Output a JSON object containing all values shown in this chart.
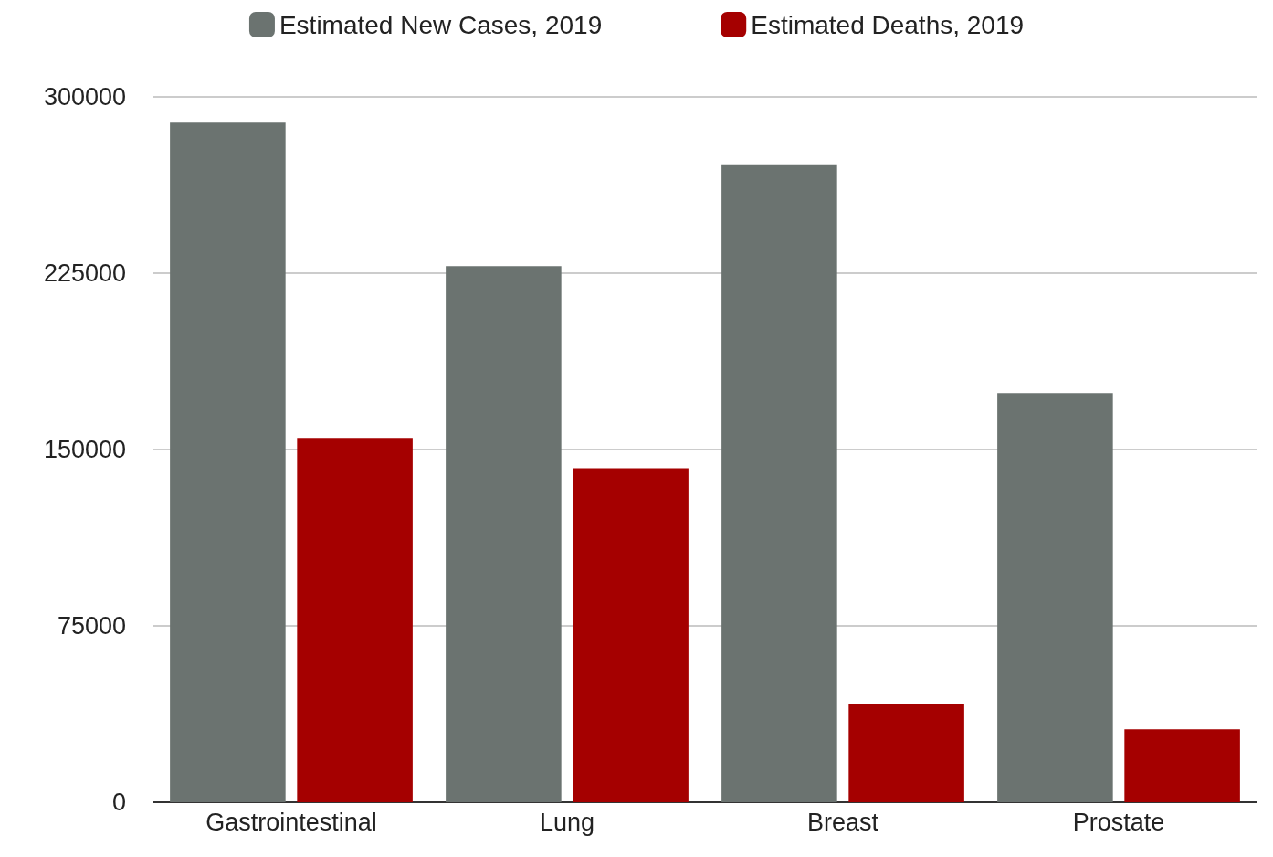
{
  "chart_data": {
    "type": "bar",
    "categories": [
      "Gastrointestinal",
      "Lung",
      "Breast",
      "Prostate"
    ],
    "series": [
      {
        "name": "Estimated New Cases, 2019",
        "color": "#6b7370",
        "values": [
          289000,
          228000,
          271000,
          174000
        ]
      },
      {
        "name": "Estimated Deaths, 2019",
        "color": "#a50000",
        "values": [
          155000,
          142000,
          42000,
          31000
        ]
      }
    ],
    "ylim": [
      0,
      300000
    ],
    "yticks": [
      0,
      75000,
      150000,
      225000,
      300000
    ],
    "grid": "y",
    "legend": "top"
  }
}
